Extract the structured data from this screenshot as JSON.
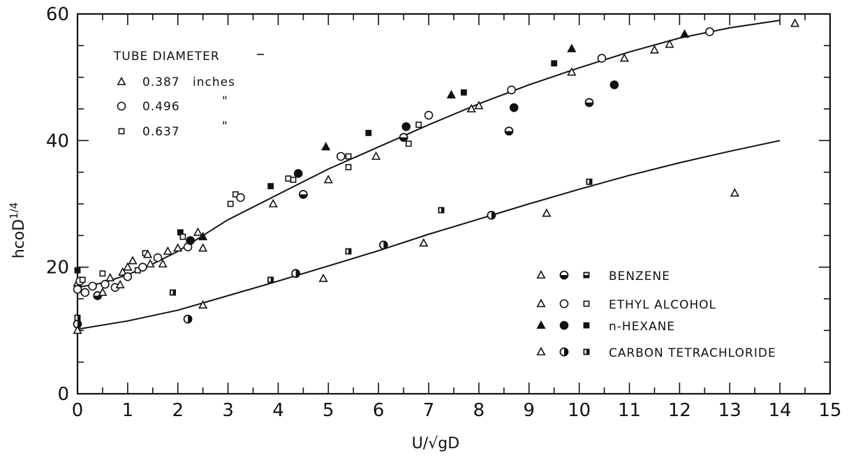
{
  "chart_data": {
    "type": "scatter",
    "title": "",
    "xlabel": "U/√gD",
    "ylabel": "hcoD^1/4",
    "ylabel_main": "hcoD",
    "ylabel_sup": "1/4",
    "xlim": [
      0,
      15
    ],
    "ylim": [
      0,
      60
    ],
    "x_ticks": [
      0,
      1,
      2,
      3,
      4,
      5,
      6,
      7,
      8,
      9,
      10,
      11,
      12,
      13,
      14,
      15
    ],
    "y_ticks": [
      0,
      20,
      40,
      60
    ],
    "grid": false,
    "diameter_legend": {
      "title": "TUBE DIAMETER",
      "entries": [
        {
          "marker": "triangle-open",
          "value": "0.387",
          "unit": "inches"
        },
        {
          "marker": "circle-open",
          "value": "0.496",
          "unit": "\""
        },
        {
          "marker": "square-open",
          "value": "0.637",
          "unit": "\""
        }
      ]
    },
    "fluid_legend": {
      "placement": "bottom-right",
      "entries": [
        {
          "name": "BENZENE",
          "fill": "bottom-half"
        },
        {
          "name": "ETHYL ALCOHOL",
          "fill": "open"
        },
        {
          "name": "n-HEXANE",
          "fill": "solid"
        },
        {
          "name": "CARBON TETRACHLORIDE",
          "fill": "right-half"
        }
      ]
    },
    "curves": [
      {
        "points": [
          [
            0,
            16.8
          ],
          [
            0.5,
            17.5
          ],
          [
            1,
            18.8
          ],
          [
            1.5,
            20.5
          ],
          [
            2,
            22.5
          ],
          [
            2.5,
            25
          ],
          [
            3,
            27.5
          ],
          [
            4,
            31.5
          ],
          [
            5,
            35.5
          ],
          [
            6,
            39
          ],
          [
            7,
            42.5
          ],
          [
            8,
            45.8
          ],
          [
            9,
            48.8
          ],
          [
            10,
            51.5
          ],
          [
            11,
            54
          ],
          [
            12,
            56.2
          ],
          [
            13,
            57.8
          ],
          [
            14,
            59
          ]
        ]
      },
      {
        "points": [
          [
            0,
            10.2
          ],
          [
            1,
            11.5
          ],
          [
            2,
            13.2
          ],
          [
            3,
            15.5
          ],
          [
            4,
            17.8
          ],
          [
            5,
            20.2
          ],
          [
            6,
            22.6
          ],
          [
            7,
            25.2
          ],
          [
            8,
            27.6
          ],
          [
            9,
            30
          ],
          [
            10,
            32.3
          ],
          [
            11,
            34.5
          ],
          [
            12,
            36.5
          ],
          [
            13,
            38.3
          ],
          [
            14,
            40
          ]
        ]
      }
    ],
    "points": [
      {
        "x": 0,
        "y": 17.5,
        "marker": "triangle",
        "fill": "open"
      },
      {
        "x": 0,
        "y": 16.5,
        "marker": "circle",
        "fill": "open"
      },
      {
        "x": 0.05,
        "y": 17.8,
        "marker": "circle",
        "fill": "open"
      },
      {
        "x": 0,
        "y": 19.5,
        "marker": "square",
        "fill": "solid"
      },
      {
        "x": 0.15,
        "y": 16,
        "marker": "circle",
        "fill": "open"
      },
      {
        "x": 0.1,
        "y": 18,
        "marker": "square",
        "fill": "open"
      },
      {
        "x": 0.3,
        "y": 17,
        "marker": "circle",
        "fill": "open"
      },
      {
        "x": 0.4,
        "y": 15.5,
        "marker": "circle",
        "fill": "bottom-half"
      },
      {
        "x": 0.5,
        "y": 16,
        "marker": "triangle",
        "fill": "open"
      },
      {
        "x": 0.5,
        "y": 19,
        "marker": "square",
        "fill": "open"
      },
      {
        "x": 0.55,
        "y": 17.3,
        "marker": "circle",
        "fill": "open"
      },
      {
        "x": 0.65,
        "y": 18.3,
        "marker": "triangle",
        "fill": "open"
      },
      {
        "x": 0.75,
        "y": 16.8,
        "marker": "circle",
        "fill": "open"
      },
      {
        "x": 0.85,
        "y": 17.2,
        "marker": "triangle",
        "fill": "open"
      },
      {
        "x": 0.9,
        "y": 19.2,
        "marker": "triangle",
        "fill": "open"
      },
      {
        "x": 1,
        "y": 18.5,
        "marker": "circle",
        "fill": "open"
      },
      {
        "x": 1,
        "y": 20,
        "marker": "triangle",
        "fill": "open"
      },
      {
        "x": 1.1,
        "y": 21,
        "marker": "triangle",
        "fill": "open"
      },
      {
        "x": 1.2,
        "y": 19.5,
        "marker": "square",
        "fill": "open"
      },
      {
        "x": 1.3,
        "y": 20,
        "marker": "circle",
        "fill": "open"
      },
      {
        "x": 1.35,
        "y": 22.2,
        "marker": "square",
        "fill": "open"
      },
      {
        "x": 1.4,
        "y": 22,
        "marker": "triangle",
        "fill": "open"
      },
      {
        "x": 1.45,
        "y": 20.5,
        "marker": "triangle",
        "fill": "open"
      },
      {
        "x": 1.6,
        "y": 21.5,
        "marker": "circle",
        "fill": "open"
      },
      {
        "x": 1.7,
        "y": 20.5,
        "marker": "triangle",
        "fill": "open"
      },
      {
        "x": 1.8,
        "y": 22.5,
        "marker": "triangle",
        "fill": "open"
      },
      {
        "x": 2.0,
        "y": 23,
        "marker": "triangle",
        "fill": "open"
      },
      {
        "x": 2.05,
        "y": 25.5,
        "marker": "square",
        "fill": "solid"
      },
      {
        "x": 2.1,
        "y": 24.8,
        "marker": "square",
        "fill": "open"
      },
      {
        "x": 2.2,
        "y": 23.2,
        "marker": "circle",
        "fill": "open"
      },
      {
        "x": 2.25,
        "y": 24.2,
        "marker": "circle",
        "fill": "solid"
      },
      {
        "x": 2.4,
        "y": 25.5,
        "marker": "triangle",
        "fill": "open"
      },
      {
        "x": 2.5,
        "y": 23,
        "marker": "triangle",
        "fill": "open"
      },
      {
        "x": 2.5,
        "y": 24.8,
        "marker": "triangle",
        "fill": "solid"
      },
      {
        "x": 3.05,
        "y": 30,
        "marker": "square",
        "fill": "open"
      },
      {
        "x": 3.15,
        "y": 31.5,
        "marker": "square",
        "fill": "open"
      },
      {
        "x": 3.25,
        "y": 31,
        "marker": "circle",
        "fill": "open"
      },
      {
        "x": 3.9,
        "y": 30,
        "marker": "triangle",
        "fill": "open"
      },
      {
        "x": 3.85,
        "y": 32.8,
        "marker": "square",
        "fill": "solid"
      },
      {
        "x": 4.2,
        "y": 34,
        "marker": "square",
        "fill": "open"
      },
      {
        "x": 4.3,
        "y": 33.8,
        "marker": "square",
        "fill": "open"
      },
      {
        "x": 4.4,
        "y": 34.8,
        "marker": "circle",
        "fill": "solid"
      },
      {
        "x": 4.5,
        "y": 31.5,
        "marker": "circle",
        "fill": "bottom-half"
      },
      {
        "x": 4.95,
        "y": 39,
        "marker": "triangle",
        "fill": "solid"
      },
      {
        "x": 5.0,
        "y": 33.8,
        "marker": "triangle",
        "fill": "open"
      },
      {
        "x": 5.25,
        "y": 37.5,
        "marker": "circle",
        "fill": "open"
      },
      {
        "x": 5.4,
        "y": 37.5,
        "marker": "square",
        "fill": "open"
      },
      {
        "x": 5.4,
        "y": 35.8,
        "marker": "square",
        "fill": "open"
      },
      {
        "x": 5.8,
        "y": 41.2,
        "marker": "square",
        "fill": "solid"
      },
      {
        "x": 5.95,
        "y": 37.5,
        "marker": "triangle",
        "fill": "open"
      },
      {
        "x": 6.5,
        "y": 40.5,
        "marker": "circle",
        "fill": "bottom-half"
      },
      {
        "x": 6.55,
        "y": 42.2,
        "marker": "circle",
        "fill": "solid"
      },
      {
        "x": 6.6,
        "y": 39.5,
        "marker": "square",
        "fill": "open"
      },
      {
        "x": 6.8,
        "y": 42.5,
        "marker": "square",
        "fill": "open"
      },
      {
        "x": 7.0,
        "y": 44,
        "marker": "circle",
        "fill": "open"
      },
      {
        "x": 7.45,
        "y": 47.2,
        "marker": "triangle",
        "fill": "solid"
      },
      {
        "x": 7.7,
        "y": 47.6,
        "marker": "square",
        "fill": "solid"
      },
      {
        "x": 7.85,
        "y": 45,
        "marker": "triangle",
        "fill": "open"
      },
      {
        "x": 8.0,
        "y": 45.5,
        "marker": "triangle",
        "fill": "open"
      },
      {
        "x": 8.6,
        "y": 41.5,
        "marker": "circle",
        "fill": "bottom-half"
      },
      {
        "x": 8.65,
        "y": 48,
        "marker": "circle",
        "fill": "open"
      },
      {
        "x": 8.7,
        "y": 45.2,
        "marker": "circle",
        "fill": "solid"
      },
      {
        "x": 9.5,
        "y": 52.2,
        "marker": "square",
        "fill": "solid"
      },
      {
        "x": 9.85,
        "y": 54.5,
        "marker": "triangle",
        "fill": "solid"
      },
      {
        "x": 9.85,
        "y": 50.8,
        "marker": "triangle",
        "fill": "open"
      },
      {
        "x": 10.2,
        "y": 46,
        "marker": "circle",
        "fill": "bottom-half"
      },
      {
        "x": 10.45,
        "y": 53,
        "marker": "circle",
        "fill": "open"
      },
      {
        "x": 10.7,
        "y": 48.8,
        "marker": "circle",
        "fill": "solid"
      },
      {
        "x": 10.9,
        "y": 53,
        "marker": "triangle",
        "fill": "open"
      },
      {
        "x": 11.5,
        "y": 54.3,
        "marker": "triangle",
        "fill": "open"
      },
      {
        "x": 11.8,
        "y": 55.2,
        "marker": "triangle",
        "fill": "open"
      },
      {
        "x": 12.1,
        "y": 56.8,
        "marker": "triangle",
        "fill": "solid"
      },
      {
        "x": 12.6,
        "y": 57.2,
        "marker": "circle",
        "fill": "open"
      },
      {
        "x": 14.3,
        "y": 58.5,
        "marker": "triangle",
        "fill": "open"
      },
      {
        "x": 0,
        "y": 12,
        "marker": "square",
        "fill": "right-half"
      },
      {
        "x": 0,
        "y": 11,
        "marker": "circle",
        "fill": "right-half"
      },
      {
        "x": 0,
        "y": 10,
        "marker": "triangle",
        "fill": "open"
      },
      {
        "x": 1.9,
        "y": 16,
        "marker": "square",
        "fill": "right-half"
      },
      {
        "x": 2.2,
        "y": 11.8,
        "marker": "circle",
        "fill": "right-half"
      },
      {
        "x": 2.5,
        "y": 14,
        "marker": "triangle",
        "fill": "open"
      },
      {
        "x": 3.85,
        "y": 18,
        "marker": "square",
        "fill": "right-half"
      },
      {
        "x": 4.35,
        "y": 19,
        "marker": "circle",
        "fill": "right-half"
      },
      {
        "x": 4.9,
        "y": 18.2,
        "marker": "triangle",
        "fill": "open"
      },
      {
        "x": 5.4,
        "y": 22.5,
        "marker": "square",
        "fill": "right-half"
      },
      {
        "x": 6.1,
        "y": 23.5,
        "marker": "circle",
        "fill": "right-half"
      },
      {
        "x": 6.9,
        "y": 23.8,
        "marker": "triangle",
        "fill": "open"
      },
      {
        "x": 7.25,
        "y": 29,
        "marker": "square",
        "fill": "right-half"
      },
      {
        "x": 8.25,
        "y": 28.2,
        "marker": "circle",
        "fill": "right-half"
      },
      {
        "x": 9.35,
        "y": 28.5,
        "marker": "triangle",
        "fill": "open"
      },
      {
        "x": 10.2,
        "y": 33.5,
        "marker": "square",
        "fill": "right-half"
      },
      {
        "x": 13.1,
        "y": 31.7,
        "marker": "triangle",
        "fill": "open"
      }
    ]
  }
}
